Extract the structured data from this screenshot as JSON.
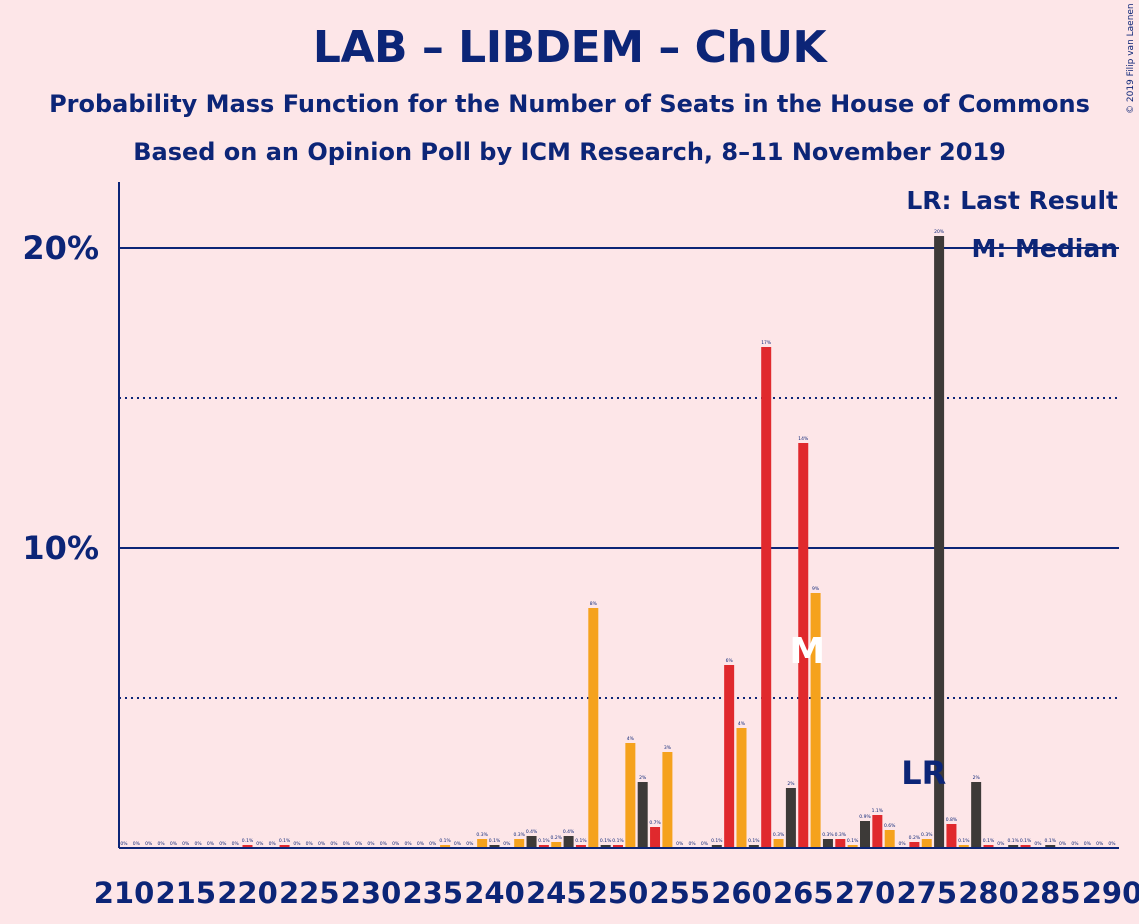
{
  "title": "LAB – LIBDEM – ChUK",
  "subtitle1": "Probability Mass Function for the Number of Seats in the House of Commons",
  "subtitle2": "Based on an Opinion Poll by ICM Research, 8–11 November 2019",
  "copyright": "© 2019 Filip van Laenen",
  "legend": {
    "last_result": "LR: Last Result",
    "median": "M: Median"
  },
  "markers": {
    "lr_label": "LR",
    "median_label": "M"
  },
  "colors": {
    "background": "#fde6e8",
    "axis": "#0c2577",
    "dark": "#3d3a38",
    "red": "#e0292d",
    "orange": "#f5a21d",
    "median_label": "#ffffff"
  },
  "chart_data": {
    "type": "bar",
    "y_ticks": [
      {
        "value": 10,
        "label": "10%"
      },
      {
        "value": 20,
        "label": "20%"
      }
    ],
    "x_tick_labels": [
      "210",
      "215",
      "220",
      "225",
      "230",
      "235",
      "240",
      "245",
      "250",
      "255",
      "260",
      "265",
      "270",
      "275",
      "280",
      "285",
      "290"
    ],
    "ylim": [
      0,
      22.2
    ],
    "x_range": [
      210,
      290
    ],
    "gridlines": {
      "solid": [
        10,
        20
      ],
      "dotted": [
        5,
        15
      ]
    },
    "last_result_seat": 275,
    "median_seat": 265,
    "bars": [
      {
        "seat": 210,
        "value": 0,
        "label": "0%"
      },
      {
        "seat": 211,
        "value": 0,
        "label": "0%"
      },
      {
        "seat": 212,
        "value": 0,
        "label": "0%"
      },
      {
        "seat": 213,
        "value": 0,
        "label": "0%"
      },
      {
        "seat": 214,
        "value": 0,
        "label": "0%"
      },
      {
        "seat": 215,
        "value": 0,
        "label": "0%"
      },
      {
        "seat": 216,
        "value": 0,
        "label": "0%"
      },
      {
        "seat": 217,
        "value": 0,
        "label": "0%"
      },
      {
        "seat": 218,
        "value": 0,
        "label": "0%"
      },
      {
        "seat": 219,
        "value": 0,
        "label": "0%"
      },
      {
        "seat": 220,
        "value": 0.1,
        "label": "0.1%"
      },
      {
        "seat": 221,
        "value": 0,
        "label": "0%"
      },
      {
        "seat": 222,
        "value": 0,
        "label": "0%"
      },
      {
        "seat": 223,
        "value": 0.1,
        "label": "0.1%"
      },
      {
        "seat": 224,
        "value": 0,
        "label": "0%"
      },
      {
        "seat": 225,
        "value": 0,
        "label": "0%"
      },
      {
        "seat": 226,
        "value": 0,
        "label": "0%"
      },
      {
        "seat": 227,
        "value": 0,
        "label": "0%"
      },
      {
        "seat": 228,
        "value": 0,
        "label": "0%"
      },
      {
        "seat": 229,
        "value": 0,
        "label": "0%"
      },
      {
        "seat": 230,
        "value": 0,
        "label": "0%"
      },
      {
        "seat": 231,
        "value": 0,
        "label": "0%"
      },
      {
        "seat": 232,
        "value": 0,
        "label": "0%"
      },
      {
        "seat": 233,
        "value": 0,
        "label": "0%"
      },
      {
        "seat": 234,
        "value": 0,
        "label": "0%"
      },
      {
        "seat": 235,
        "value": 0,
        "label": "0%"
      },
      {
        "seat": 236,
        "value": 0.1,
        "label": "0.1%"
      },
      {
        "seat": 237,
        "value": 0,
        "label": "0%"
      },
      {
        "seat": 238,
        "value": 0,
        "label": "0%"
      },
      {
        "seat": 239,
        "value": 0.3,
        "label": "0.3%"
      },
      {
        "seat": 240,
        "value": 0.1,
        "label": "0.1%"
      },
      {
        "seat": 241,
        "value": 0,
        "label": "0%"
      },
      {
        "seat": 242,
        "value": 0.3,
        "label": "0.3%"
      },
      {
        "seat": 243,
        "value": 0.4,
        "label": "0.4%"
      },
      {
        "seat": 244,
        "value": 0.1,
        "label": "0.1%"
      },
      {
        "seat": 245,
        "value": 0.2,
        "label": "0.2%"
      },
      {
        "seat": 246,
        "value": 0.4,
        "label": "0.4%"
      },
      {
        "seat": 247,
        "value": 0.1,
        "label": "0.1%"
      },
      {
        "seat": 248,
        "value": 8,
        "label": "8%"
      },
      {
        "seat": 249,
        "value": 0.1,
        "label": "0.1%"
      },
      {
        "seat": 250,
        "value": 0.1,
        "label": "0.1%"
      },
      {
        "seat": 251,
        "value": 3.5,
        "label": "4%"
      },
      {
        "seat": 252,
        "value": 2.2,
        "label": "2%"
      },
      {
        "seat": 253,
        "value": 0.7,
        "label": "0.7%"
      },
      {
        "seat": 254,
        "value": 3.2,
        "label": "3%"
      },
      {
        "seat": 255,
        "value": 0,
        "label": "0%"
      },
      {
        "seat": 256,
        "value": 0,
        "label": "0%"
      },
      {
        "seat": 257,
        "value": 0,
        "label": "0%"
      },
      {
        "seat": 258,
        "value": 0.1,
        "label": "0.1%"
      },
      {
        "seat": 259,
        "value": 6.1,
        "label": "6%"
      },
      {
        "seat": 260,
        "value": 4,
        "label": "4%"
      },
      {
        "seat": 261,
        "value": 0.1,
        "label": "0.1%"
      },
      {
        "seat": 262,
        "value": 16.7,
        "label": "17%"
      },
      {
        "seat": 263,
        "value": 0.3,
        "label": "0.3%"
      },
      {
        "seat": 264,
        "value": 2,
        "label": "2%"
      },
      {
        "seat": 265,
        "value": 13.5,
        "label": "14%"
      },
      {
        "seat": 266,
        "value": 8.5,
        "label": "9%"
      },
      {
        "seat": 267,
        "value": 0.3,
        "label": "0.3%"
      },
      {
        "seat": 268,
        "value": 0.3,
        "label": "0.3%"
      },
      {
        "seat": 269,
        "value": 0.1,
        "label": "0.1%"
      },
      {
        "seat": 270,
        "value": 0.9,
        "label": "0.9%"
      },
      {
        "seat": 271,
        "value": 1.1,
        "label": "1.1%"
      },
      {
        "seat": 272,
        "value": 0.6,
        "label": "0.6%"
      },
      {
        "seat": 273,
        "value": 0,
        "label": "0%"
      },
      {
        "seat": 274,
        "value": 0.2,
        "label": "0.2%"
      },
      {
        "seat": 275,
        "value": 0.3,
        "label": "0.3%"
      },
      {
        "seat": 276,
        "value": 20.4,
        "label": "20%"
      },
      {
        "seat": 277,
        "value": 0.8,
        "label": "0.8%"
      },
      {
        "seat": 278,
        "value": 0.1,
        "label": "0.1%"
      },
      {
        "seat": 279,
        "value": 2.2,
        "label": "2%"
      },
      {
        "seat": 280,
        "value": 0.1,
        "label": "0.1%"
      },
      {
        "seat": 281,
        "value": 0,
        "label": "0%"
      },
      {
        "seat": 282,
        "value": 0.1,
        "label": "0.1%"
      },
      {
        "seat": 283,
        "value": 0.1,
        "label": "0.1%"
      },
      {
        "seat": 284,
        "value": 0,
        "label": "0%"
      },
      {
        "seat": 285,
        "value": 0.1,
        "label": "0.1%"
      },
      {
        "seat": 286,
        "value": 0,
        "label": "0%"
      },
      {
        "seat": 287,
        "value": 0,
        "label": "0%"
      },
      {
        "seat": 288,
        "value": 0,
        "label": "0%"
      },
      {
        "seat": 289,
        "value": 0,
        "label": "0%"
      },
      {
        "seat": 290,
        "value": 0,
        "label": "0%"
      }
    ]
  }
}
